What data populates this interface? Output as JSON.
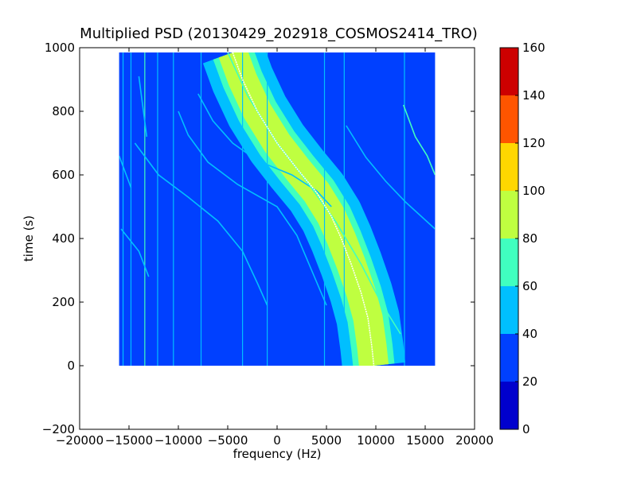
{
  "chart_data": {
    "type": "heatmap",
    "title": "Multiplied PSD (20130429_202918_COSMOS2414_TRO)",
    "xlabel": "frequency (Hz)",
    "ylabel": "time (s)",
    "xlim": [
      -20000,
      20000
    ],
    "ylim": [
      -200,
      1000
    ],
    "x_ticks": [
      -20000,
      -15000,
      -10000,
      -5000,
      0,
      5000,
      10000,
      15000,
      20000
    ],
    "x_tick_labels": [
      "−20000",
      "−15000",
      "−10000",
      "−5000",
      "0",
      "5000",
      "10000",
      "15000",
      "20000"
    ],
    "y_ticks": [
      -200,
      0,
      200,
      400,
      600,
      800,
      1000
    ],
    "y_tick_labels": [
      "−200",
      "0",
      "200",
      "400",
      "600",
      "800",
      "1000"
    ],
    "data_extent": {
      "x": [
        -16000,
        16000
      ],
      "y": [
        0,
        985
      ]
    },
    "colorbar": {
      "levels": [
        0,
        20,
        40,
        60,
        80,
        100,
        120,
        140,
        160
      ],
      "tick_labels": [
        "0",
        "20",
        "40",
        "60",
        "80",
        "100",
        "120",
        "140",
        "160"
      ],
      "colors": [
        "#0000cd",
        "#0040ff",
        "#00bfff",
        "#40ffbf",
        "#bfff40",
        "#ffd700",
        "#ff5500",
        "#cd0000"
      ]
    },
    "background_level": 30,
    "band_center": [
      [
        -4500,
        985
      ],
      [
        -3500,
        900
      ],
      [
        -2000,
        800
      ],
      [
        0,
        700
      ],
      [
        2000,
        620
      ],
      [
        4000,
        545
      ],
      [
        5500,
        470
      ],
      [
        6500,
        400
      ],
      [
        7500,
        320
      ],
      [
        8500,
        230
      ],
      [
        9200,
        150
      ],
      [
        9600,
        60
      ],
      [
        9800,
        0
      ]
    ],
    "band_profile": [
      {
        "level": 75,
        "half_width_hz": 2100
      },
      {
        "level": 85,
        "half_width_hz": 1500
      }
    ],
    "band_edge": {
      "level": 55,
      "half_width_hz": 3200
    },
    "center_line_level": 95,
    "vertical_lines": [
      {
        "x": -15600,
        "level": 50
      },
      {
        "x": -14800,
        "level": 55
      },
      {
        "x": -13400,
        "level": 60
      },
      {
        "x": -12100,
        "level": 50
      },
      {
        "x": -10500,
        "level": 45
      },
      {
        "x": -7700,
        "level": 50
      },
      {
        "x": -3500,
        "level": 45
      },
      {
        "x": -1000,
        "level": 45
      },
      {
        "x": 4800,
        "level": 45
      },
      {
        "x": 6800,
        "level": 45
      },
      {
        "x": 12900,
        "level": 45
      }
    ],
    "faint_traces": [
      {
        "points": [
          [
            -15800,
            430
          ],
          [
            -14000,
            360
          ],
          [
            -13000,
            280
          ]
        ],
        "level": 50
      },
      {
        "points": [
          [
            -14400,
            700
          ],
          [
            -12000,
            600
          ],
          [
            -9000,
            530
          ],
          [
            -6000,
            455
          ],
          [
            -3500,
            360
          ],
          [
            -2000,
            260
          ],
          [
            -1000,
            190
          ]
        ],
        "level": 55
      },
      {
        "points": [
          [
            -10000,
            800
          ],
          [
            -9000,
            725
          ],
          [
            -7000,
            640
          ],
          [
            -4000,
            570
          ],
          [
            0,
            500
          ],
          [
            2000,
            410
          ],
          [
            3500,
            300
          ],
          [
            5000,
            190
          ]
        ],
        "level": 55
      },
      {
        "points": [
          [
            -8000,
            855
          ],
          [
            -6500,
            770
          ],
          [
            -4500,
            700
          ],
          [
            -2000,
            645
          ],
          [
            1500,
            600
          ],
          [
            4000,
            550
          ],
          [
            5500,
            500
          ]
        ],
        "level": 55
      },
      {
        "points": [
          [
            -5000,
            985
          ],
          [
            -3000,
            850
          ],
          [
            0,
            700
          ],
          [
            3000,
            580
          ],
          [
            6000,
            450
          ],
          [
            8500,
            320
          ],
          [
            10500,
            200
          ],
          [
            12500,
            100
          ]
        ],
        "level": 60
      },
      {
        "points": [
          [
            7000,
            755
          ],
          [
            9000,
            655
          ],
          [
            11000,
            580
          ],
          [
            13000,
            515
          ],
          [
            16000,
            430
          ]
        ],
        "level": 55
      },
      {
        "points": [
          [
            12800,
            820
          ],
          [
            14000,
            720
          ],
          [
            15200,
            660
          ],
          [
            16000,
            600
          ]
        ],
        "level": 60
      },
      {
        "points": [
          [
            -16000,
            660
          ],
          [
            -14800,
            560
          ]
        ],
        "level": 50
      },
      {
        "points": [
          [
            -14000,
            910
          ],
          [
            -13200,
            720
          ]
        ],
        "level": 50
      }
    ]
  }
}
